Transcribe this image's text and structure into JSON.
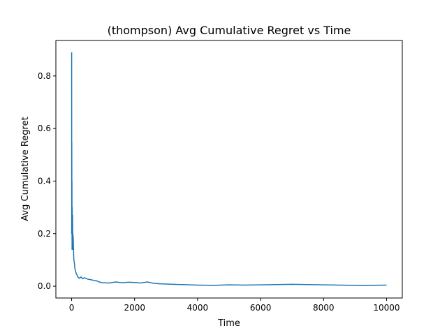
{
  "chart_data": {
    "type": "line",
    "title": "(thompson) Avg Cumulative Regret vs Time",
    "xlabel": "Time",
    "ylabel": "Avg Cumulative Regret",
    "xlim": [
      -500,
      10500
    ],
    "ylim": [
      -0.045,
      0.935
    ],
    "xticks": [
      0,
      2000,
      4000,
      6000,
      8000,
      10000
    ],
    "yticks": [
      0.0,
      0.2,
      0.4,
      0.6,
      0.8
    ],
    "ytick_labels": [
      "0.0",
      "0.2",
      "0.4",
      "0.6",
      "0.8"
    ],
    "grid": false,
    "color": "#1f77b4",
    "series": [
      {
        "x": [
          1,
          3,
          5,
          8,
          10,
          14,
          18,
          22,
          26,
          30,
          35,
          40,
          45,
          50,
          55,
          60,
          70,
          80,
          90,
          100,
          120,
          140,
          160,
          180,
          200,
          250,
          300,
          350,
          400,
          450,
          500,
          600,
          700,
          800,
          900,
          1000,
          1200,
          1400,
          1600,
          1800,
          2000,
          2200,
          2400,
          2600,
          2800,
          3000,
          3500,
          4000,
          4500,
          5000,
          5500,
          6000,
          6500,
          7000,
          7500,
          8000,
          8500,
          9000,
          9200,
          9500,
          10000
        ],
        "y": [
          0.89,
          0.2,
          0.55,
          0.32,
          0.4,
          0.14,
          0.3,
          0.21,
          0.15,
          0.27,
          0.18,
          0.2,
          0.14,
          0.19,
          0.16,
          0.14,
          0.1,
          0.095,
          0.085,
          0.07,
          0.06,
          0.05,
          0.045,
          0.04,
          0.035,
          0.03,
          0.035,
          0.028,
          0.032,
          0.03,
          0.027,
          0.025,
          0.022,
          0.02,
          0.015,
          0.013,
          0.012,
          0.016,
          0.013,
          0.015,
          0.014,
          0.012,
          0.016,
          0.011,
          0.009,
          0.008,
          0.006,
          0.004,
          0.003,
          0.005,
          0.004,
          0.005,
          0.006,
          0.007,
          0.006,
          0.005,
          0.004,
          0.003,
          0.002,
          0.003,
          0.004
        ]
      }
    ]
  }
}
